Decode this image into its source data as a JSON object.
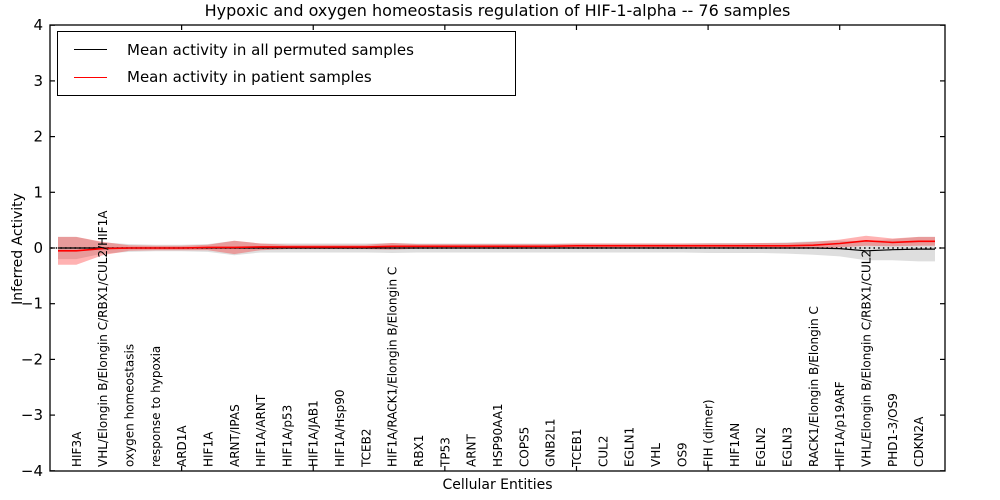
{
  "chart_data": {
    "type": "line",
    "title": "Hypoxic and oxygen homeostasis regulation of HIF-1-alpha -- 76 samples",
    "xlabel": "Cellular Entities",
    "ylabel": "Inferred Activity",
    "ylim": [
      -4,
      4
    ],
    "xlim": [
      0,
      34
    ],
    "yticks": [
      4,
      3,
      2,
      1,
      0,
      -1,
      -2,
      -3,
      -4
    ],
    "ytick_labels": [
      "4",
      "3",
      "2",
      "1",
      "0",
      "−1",
      "−2",
      "−3",
      "−4"
    ],
    "xticks_numeric": [
      5,
      10,
      15,
      20,
      25,
      30
    ],
    "grid": false,
    "legend_position": "upper left",
    "categories": [
      "HIF3A",
      "VHL/Elongin B/Elongin C/RBX1/CUL2/HIF1A",
      "oxygen homeostasis",
      "response to hypoxia",
      "ARD1A",
      "HIF1A",
      "ARNT/IPAS",
      "HIF1A/ARNT",
      "HIF1A/p53",
      "HIF1A/JAB1",
      "HIF1A/Hsp90",
      "TCEB2",
      "HIF1A/RACK1/Elongin B/Elongin C",
      "RBX1",
      "TP53",
      "ARNT",
      "HSP90AA1",
      "COPS5",
      "GNB2L1",
      "TCEB1",
      "CUL2",
      "EGLN1",
      "VHL",
      "OS9",
      "FIH (dimer)",
      "HIF1AN",
      "EGLN2",
      "EGLN3",
      "RACK1/Elongin B/Elongin C",
      "HIF1A/p19ARF",
      "VHL/Elongin B/Elongin C/RBX1/CUL2",
      "PHD1-3/OS9",
      "CDKN2A"
    ],
    "zero_line": {
      "y": 0,
      "style": "dotted",
      "color": "#000000"
    },
    "series": [
      {
        "name": "Mean activity in all permuted samples",
        "color": "#000000",
        "band_color": "#000000",
        "band_opacity": 0.13,
        "values": [
          0,
          0,
          0,
          0,
          0,
          0,
          0,
          0,
          0,
          0,
          0,
          0,
          0,
          0,
          0,
          0,
          0,
          0,
          0,
          0,
          0,
          0,
          0,
          0,
          0,
          0,
          0,
          0,
          0,
          -0.01,
          -0.05,
          -0.03,
          -0.02
        ],
        "std": [
          0.2,
          0.1,
          0.07,
          0.06,
          0.06,
          0.07,
          0.13,
          0.08,
          0.08,
          0.08,
          0.08,
          0.08,
          0.09,
          0.08,
          0.08,
          0.08,
          0.08,
          0.08,
          0.08,
          0.08,
          0.08,
          0.08,
          0.08,
          0.08,
          0.09,
          0.09,
          0.09,
          0.1,
          0.12,
          0.14,
          0.17,
          0.19,
          0.22
        ]
      },
      {
        "name": "Mean activity in patient samples",
        "color": "#ff0000",
        "band_color": "#ff0000",
        "band_opacity": 0.3,
        "values": [
          -0.05,
          -0.01,
          0,
          0,
          0,
          0.01,
          0.01,
          0.02,
          0.02,
          0.02,
          0.02,
          0.02,
          0.03,
          0.03,
          0.03,
          0.03,
          0.03,
          0.03,
          0.03,
          0.04,
          0.04,
          0.04,
          0.04,
          0.04,
          0.04,
          0.04,
          0.04,
          0.04,
          0.05,
          0.08,
          0.13,
          0.1,
          0.12
        ],
        "std": [
          0.25,
          0.12,
          0.05,
          0.04,
          0.04,
          0.05,
          0.12,
          0.06,
          0.04,
          0.04,
          0.04,
          0.04,
          0.06,
          0.04,
          0.04,
          0.04,
          0.04,
          0.04,
          0.04,
          0.04,
          0.04,
          0.04,
          0.04,
          0.04,
          0.04,
          0.04,
          0.05,
          0.05,
          0.06,
          0.07,
          0.09,
          0.07,
          0.08
        ]
      }
    ]
  }
}
